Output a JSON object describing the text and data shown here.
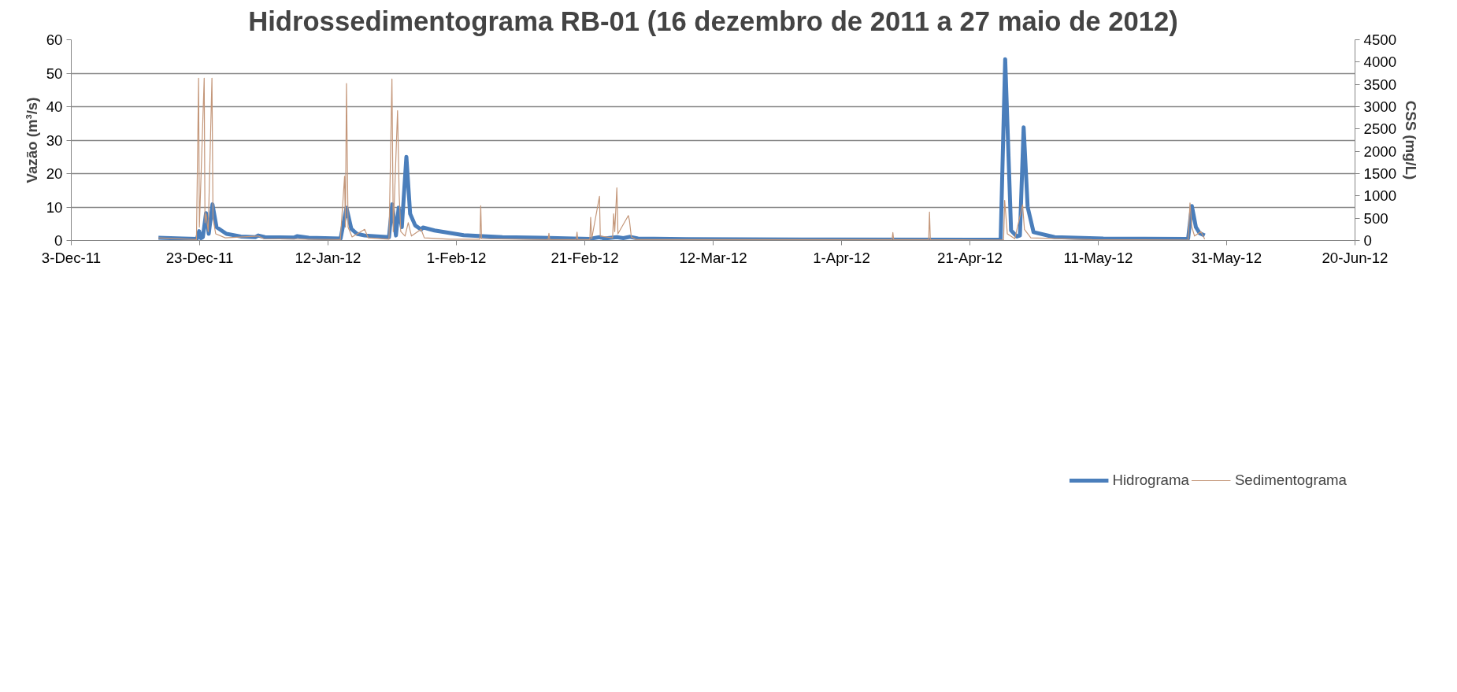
{
  "chart_data": {
    "type": "line",
    "title": "Hidrossedimentograma RB-01 (16 dezembro de 2011 a 27 maio de 2012)",
    "ylabel": "Vazão (m³/s)",
    "y2label": "CSS (mg/L)",
    "xlim": [
      "2011-12-03",
      "2012-06-20"
    ],
    "xticks": [
      {
        "value": "2011-12-03",
        "label": "3-Dec-11"
      },
      {
        "value": "2011-12-23",
        "label": "23-Dec-11"
      },
      {
        "value": "2012-01-12",
        "label": "12-Jan-12"
      },
      {
        "value": "2012-02-01",
        "label": "1-Feb-12"
      },
      {
        "value": "2012-02-21",
        "label": "21-Feb-12"
      },
      {
        "value": "2012-03-12",
        "label": "12-Mar-12"
      },
      {
        "value": "2012-04-01",
        "label": "1-Apr-12"
      },
      {
        "value": "2012-04-21",
        "label": "21-Apr-12"
      },
      {
        "value": "2012-05-11",
        "label": "11-May-12"
      },
      {
        "value": "2012-05-31",
        "label": "31-May-12"
      },
      {
        "value": "2012-06-20",
        "label": "20-Jun-12"
      }
    ],
    "ylim": [
      0,
      60
    ],
    "yticks": [
      0,
      10,
      20,
      30,
      40,
      50,
      60
    ],
    "y2lim": [
      0,
      4500
    ],
    "y2ticks": [
      0,
      500,
      1000,
      1500,
      2000,
      2500,
      3000,
      3500,
      4000,
      4500
    ],
    "grid": "y",
    "legend": "bottom",
    "marker": "none",
    "line_style": "solid",
    "series": [
      {
        "name": "Hidrograma",
        "color": "#4a7ebb",
        "x": [
          "2011-12-16T14:00",
          "2011-12-20T09:00",
          "2011-12-22T14:00",
          "2011-12-22T22:00",
          "2011-12-23T05:00",
          "2011-12-23T12:00",
          "2011-12-24T00:00",
          "2011-12-24T10:00",
          "2011-12-25T00:00",
          "2011-12-25T15:00",
          "2011-12-27T04:00",
          "2011-12-29T10:00",
          "2011-12-31T16:00",
          "2012-01-01T03:00",
          "2012-01-02T04:00",
          "2012-01-06T17:00",
          "2012-01-07T04:00",
          "2012-01-09T00:00",
          "2012-01-13T23:00",
          "2012-01-14T21:00",
          "2012-01-15T15:00",
          "2012-01-16T12:00",
          "2012-01-17T17:00",
          "2012-01-21T12:00",
          "2012-01-22T00:00",
          "2012-01-22T14:00",
          "2012-01-23T00:00",
          "2012-01-23T12:00",
          "2012-01-24T05:00",
          "2012-01-24T19:00",
          "2012-01-25T14:00",
          "2012-01-26T12:00",
          "2012-01-26T19:00",
          "2012-01-28T14:00",
          "2012-02-02T03:00",
          "2012-02-08T04:00",
          "2012-02-14T05:00",
          "2012-02-21T19:00",
          "2012-02-23T07:00",
          "2012-02-24T00:00",
          "2012-02-26T00:00",
          "2012-02-27T00:00",
          "2012-02-28T02:00",
          "2012-02-29T07:00",
          "2012-03-07T20:00",
          "2012-03-30T12:00",
          "2012-04-22T03:00",
          "2012-04-25T19:00",
          "2012-04-26T12:00",
          "2012-04-27T10:00",
          "2012-04-28T08:00",
          "2012-04-28T19:00",
          "2012-04-29T09:00",
          "2012-04-30T00:00",
          "2012-04-30T22:00",
          "2012-05-04T05:00",
          "2012-05-11T19:00",
          "2012-05-24T14:00",
          "2012-05-25T00:00",
          "2012-05-25T14:00",
          "2012-05-26T05:00",
          "2012-05-26T19:00",
          "2012-05-27T14:00"
        ],
        "values": [
          0.8,
          0.6,
          0.5,
          2.8,
          0.7,
          1.0,
          8.2,
          2.0,
          10.8,
          4.0,
          2.0,
          1.2,
          1.0,
          1.5,
          1.0,
          0.9,
          1.3,
          0.8,
          0.6,
          9.8,
          3.5,
          2.0,
          1.5,
          1.0,
          10.8,
          1.5,
          9.8,
          4.0,
          25.0,
          8.0,
          4.5,
          3.3,
          3.9,
          3.0,
          1.6,
          1.0,
          0.8,
          0.5,
          1.0,
          0.6,
          1.0,
          0.7,
          1.1,
          0.6,
          0.4,
          0.3,
          0.25,
          0.3,
          54.2,
          3.0,
          1.2,
          1.5,
          33.8,
          10.0,
          2.5,
          1.0,
          0.6,
          0.5,
          0.6,
          10.3,
          4.0,
          2.2,
          1.5
        ]
      },
      {
        "name": "Sedimentograma",
        "color": "#c4977a",
        "axis": "y2",
        "x": [
          "2011-12-16T14:00",
          "2011-12-22T12:00",
          "2011-12-22T20:00",
          "2011-12-22T23:00",
          "2011-12-23T17:00",
          "2011-12-23T20:00",
          "2011-12-24T00:00",
          "2011-12-24T08:00",
          "2011-12-24T22:00",
          "2011-12-25T02:00",
          "2011-12-25T12:00",
          "2011-12-27T00:00",
          "2012-01-01T03:00",
          "2012-01-02T00:00",
          "2012-01-13T22:00",
          "2012-01-14T14:00",
          "2012-01-14T17:00",
          "2012-01-14T21:00",
          "2012-01-15T03:00",
          "2012-01-15T18:00",
          "2012-01-17T17:00",
          "2012-01-18T06:00",
          "2012-01-21T12:00",
          "2012-01-21T23:00",
          "2012-01-22T04:00",
          "2012-01-22T20:00",
          "2012-01-23T02:00",
          "2012-01-23T08:00",
          "2012-01-24T00:00",
          "2012-01-24T12:00",
          "2012-01-25T00:00",
          "2012-01-26T12:00",
          "2012-01-27T00:00",
          "2012-01-31T00:00",
          "2012-02-04T16:00",
          "2012-02-04T19:00",
          "2012-02-04T22:00",
          "2012-02-15T07:00",
          "2012-02-15T10:00",
          "2012-02-15T13:00",
          "2012-02-19T16:00",
          "2012-02-19T19:00",
          "2012-02-19T22:00",
          "2012-02-21T19:00",
          "2012-02-21T22:00",
          "2012-02-22T02:00",
          "2012-02-23T07:00",
          "2012-02-23T10:00",
          "2012-02-25T08:00",
          "2012-02-25T12:00",
          "2012-02-25T16:00",
          "2012-02-26T00:00",
          "2012-02-26T04:00",
          "2012-02-27T19:00",
          "2012-02-27T23:00",
          "2012-02-28T06:00",
          "2012-02-29T00:00",
          "2012-03-30T00:00",
          "2012-04-08T21:00",
          "2012-04-09T00:00",
          "2012-04-09T03:00",
          "2012-04-14T14:00",
          "2012-04-14T17:00",
          "2012-04-14T20:00",
          "2012-04-24T00:00",
          "2012-04-26T06:00",
          "2012-04-26T10:00",
          "2012-04-26T20:00",
          "2012-04-28T00:00",
          "2012-04-29T05:00",
          "2012-04-29T12:00",
          "2012-04-30T12:00",
          "2012-05-10T00:00",
          "2012-05-25T00:00",
          "2012-05-25T07:00",
          "2012-05-25T14:00",
          "2012-05-26T00:00",
          "2012-05-27T00:00",
          "2012-05-27T14:00"
        ],
        "values": [
          60,
          20,
          3640,
          300,
          3640,
          400,
          600,
          200,
          3640,
          500,
          150,
          60,
          100,
          40,
          20,
          1440,
          300,
          3520,
          300,
          80,
          250,
          60,
          30,
          3620,
          200,
          2910,
          1050,
          200,
          100,
          400,
          100,
          250,
          60,
          30,
          30,
          780,
          40,
          20,
          160,
          20,
          20,
          190,
          20,
          20,
          520,
          40,
          990,
          100,
          60,
          600,
          200,
          1180,
          150,
          560,
          450,
          80,
          20,
          20,
          20,
          180,
          20,
          20,
          640,
          20,
          10,
          10,
          900,
          150,
          40,
          800,
          250,
          60,
          20,
          10,
          840,
          300,
          100,
          200,
          30
        ]
      }
    ]
  }
}
